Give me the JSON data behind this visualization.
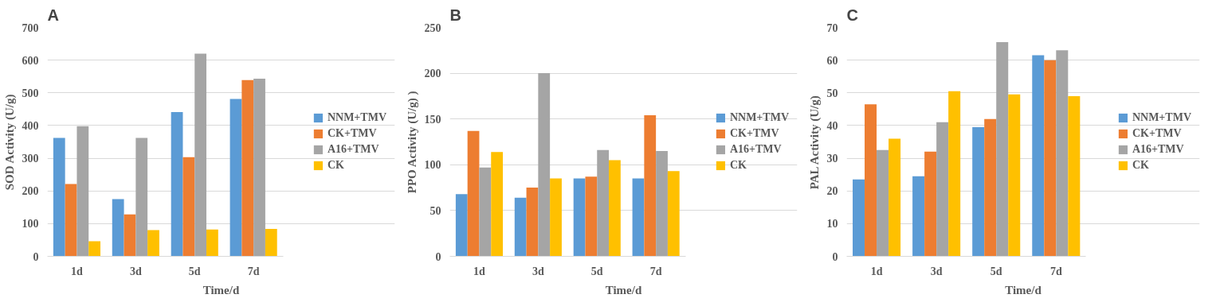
{
  "chart_data": [
    {
      "type": "bar",
      "title": "A",
      "xlabel": "Time/d",
      "ylabel": "SOD Activity (U/g)",
      "categories": [
        "1d",
        "3d",
        "5d",
        "7d"
      ],
      "ylim": [
        0,
        700
      ],
      "yticks": [
        0,
        100,
        200,
        300,
        400,
        500,
        600,
        700
      ],
      "grid": "y",
      "legend": "right",
      "series": [
        {
          "name": "NNM+TMV",
          "color": "#5b9bd5",
          "values": [
            362,
            175,
            441,
            481
          ]
        },
        {
          "name": "CK+TMV",
          "color": "#ed7d31",
          "values": [
            221,
            128,
            303,
            539
          ]
        },
        {
          "name": "A16+TMV",
          "color": "#a5a5a5",
          "values": [
            398,
            362,
            620,
            543
          ]
        },
        {
          "name": "CK",
          "color": "#ffc000",
          "values": [
            46,
            80,
            82,
            84
          ]
        }
      ]
    },
    {
      "type": "bar",
      "title": "B",
      "xlabel": "Time/d",
      "ylabel": "PPO Activity (U/g) )",
      "categories": [
        "1d",
        "3d",
        "5d",
        "7d"
      ],
      "ylim": [
        0,
        250
      ],
      "yticks": [
        0,
        50,
        100,
        150,
        200,
        250
      ],
      "grid": "y",
      "legend": "right",
      "series": [
        {
          "name": "NNM+TMV",
          "color": "#5b9bd5",
          "values": [
            68,
            64,
            85,
            85
          ]
        },
        {
          "name": "CK+TMV",
          "color": "#ed7d31",
          "values": [
            137,
            75,
            87,
            154
          ]
        },
        {
          "name": "A16+TMV",
          "color": "#a5a5a5",
          "values": [
            97,
            200,
            116,
            115
          ]
        },
        {
          "name": "CK",
          "color": "#ffc000",
          "values": [
            114,
            85,
            105,
            93
          ]
        }
      ]
    },
    {
      "type": "bar",
      "title": "C",
      "xlabel": "Time/d",
      "ylabel": "PAL Activity (U/g)",
      "categories": [
        "1d",
        "3d",
        "5d",
        "7d"
      ],
      "ylim": [
        0,
        70
      ],
      "yticks": [
        0,
        10,
        20,
        30,
        40,
        50,
        60,
        70
      ],
      "grid": "y",
      "legend": "right",
      "series": [
        {
          "name": "NNM+TMV",
          "color": "#5b9bd5",
          "values": [
            23.5,
            24.5,
            39.5,
            61.5
          ]
        },
        {
          "name": "CK+TMV",
          "color": "#ed7d31",
          "values": [
            46.5,
            32,
            42,
            60
          ]
        },
        {
          "name": "A16+TMV",
          "color": "#a5a5a5",
          "values": [
            32.5,
            41,
            65.5,
            63
          ]
        },
        {
          "name": "CK",
          "color": "#ffc000",
          "values": [
            36,
            50.5,
            49.5,
            49
          ]
        }
      ]
    }
  ]
}
